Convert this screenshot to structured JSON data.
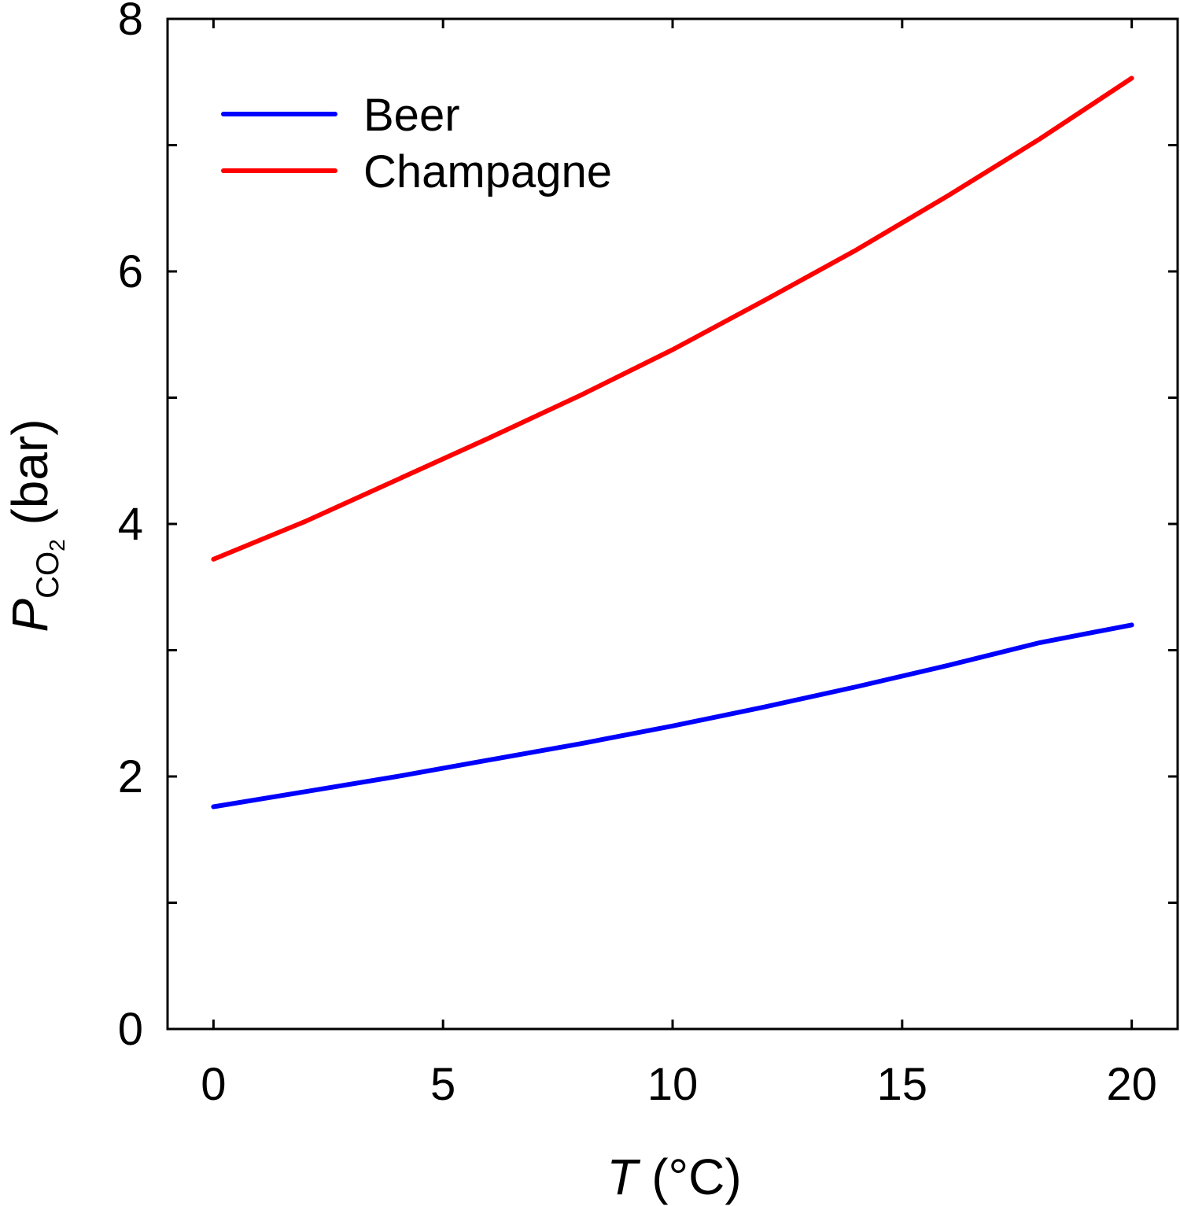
{
  "chart_data": {
    "type": "line",
    "xlabel": {
      "var": "T",
      "unit": " (°C)"
    },
    "ylabel": {
      "var": "P",
      "sub": "CO",
      "subsub": "2",
      "unit": " (bar)"
    },
    "xlim": [
      -1,
      21
    ],
    "ylim": [
      0,
      8
    ],
    "xticks": [
      0,
      5,
      10,
      15,
      20
    ],
    "xtick_labels": [
      "0",
      "5",
      "10",
      "15",
      "20"
    ],
    "yticks": [
      0,
      2,
      4,
      6,
      8
    ],
    "ytick_labels": [
      "0",
      "2",
      "4",
      "6",
      "8"
    ],
    "y_minor_step": 1,
    "grid": false,
    "legend": "top-left",
    "series": [
      {
        "name": "Beer",
        "color": "#0000ff",
        "x": [
          0,
          2,
          4,
          6,
          8,
          10,
          12,
          14,
          16,
          18,
          20
        ],
        "y": [
          1.76,
          1.88,
          2.0,
          2.13,
          2.26,
          2.4,
          2.55,
          2.71,
          2.88,
          3.06,
          3.2
        ]
      },
      {
        "name": "Champagne",
        "color": "#ff0000",
        "x": [
          0,
          2,
          4,
          6,
          8,
          10,
          12,
          14,
          16,
          18,
          20
        ],
        "y": [
          3.72,
          4.02,
          4.35,
          4.68,
          5.02,
          5.38,
          5.77,
          6.17,
          6.6,
          7.05,
          7.53
        ]
      }
    ]
  }
}
